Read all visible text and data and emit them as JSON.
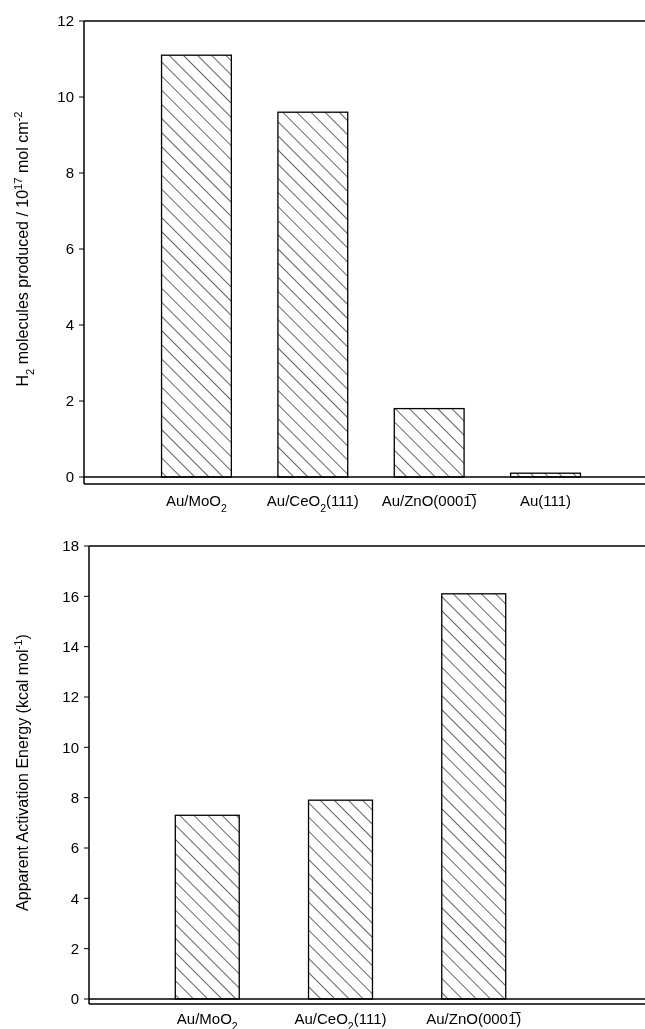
{
  "chart_data": [
    {
      "type": "bar",
      "ylabel": "H$_{2}$ molecules produced / 10$^{17}$ mol cm$^{-2}$",
      "categories": [
        "Au/MoO$_{2}$",
        "Au/CeO$_{2}$(111)",
        "Au/ZnO(0001̅)",
        "Au(111)"
      ],
      "values": [
        11.1,
        9.6,
        1.8,
        0.1
      ],
      "color": "#000000",
      "ylim": [
        0,
        12
      ],
      "yticks": [
        0,
        2,
        4,
        6,
        8,
        10,
        12
      ]
    },
    {
      "type": "bar",
      "ylabel": "Apparent Activation Energy (kcal mol$^{-1}$)",
      "categories": [
        "Au/MoO$_{2}$",
        "Au/CeO$_{2}$(111)",
        "Au/ZnO(0001̅)"
      ],
      "values": [
        7.3,
        7.9,
        16.1
      ],
      "color": "#000000",
      "ylim": [
        0,
        18
      ],
      "yticks": [
        0,
        2,
        4,
        6,
        8,
        10,
        12,
        14,
        16,
        18
      ]
    }
  ]
}
